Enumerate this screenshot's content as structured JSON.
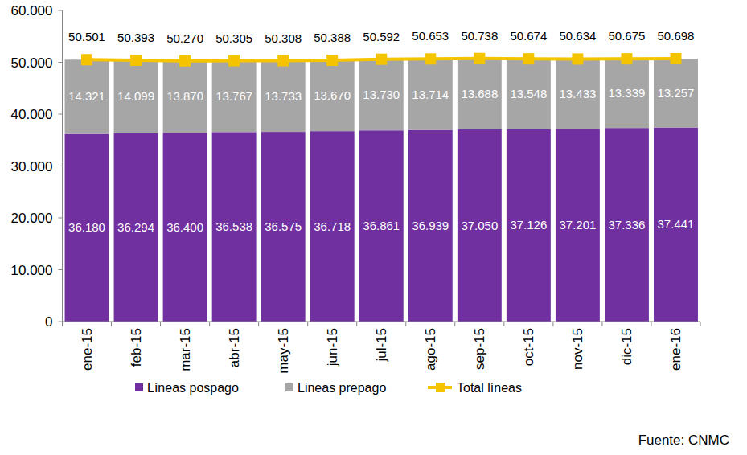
{
  "chart_data": {
    "type": "bar",
    "stacked": true,
    "data_labels": true,
    "legend": "bottom",
    "source": "Fuente: CNMC",
    "categories": [
      "ene-15",
      "feb-15",
      "mar-15",
      "abr-15",
      "may-15",
      "jun-15",
      "jul-15",
      "ago-15",
      "sep-15",
      "oct-15",
      "nov-15",
      "dic-15",
      "ene-16"
    ],
    "ylim": [
      0,
      60000
    ],
    "yticks": [
      0,
      {
        "value": 10000,
        "label": "10.000"
      },
      {
        "value": 20000,
        "label": "20.000"
      },
      {
        "value": 30000,
        "label": "30.000"
      },
      {
        "value": 40000,
        "label": "40.000"
      },
      {
        "value": 50000,
        "label": "50.000"
      },
      {
        "value": 60000,
        "label": "60.000"
      }
    ],
    "series": [
      {
        "name": "Líneas pospago",
        "type": "bar",
        "color": "#7030a0",
        "values": [
          36180,
          36294,
          36400,
          36538,
          36575,
          36718,
          36861,
          36939,
          37050,
          37126,
          37201,
          37336,
          37441
        ],
        "value_labels": [
          "36.180",
          "36.294",
          "36.400",
          "36.538",
          "36.575",
          "36.718",
          "36.861",
          "36.939",
          "37.050",
          "37.126",
          "37.201",
          "37.336",
          "37.441"
        ]
      },
      {
        "name": "Lineas prepago",
        "type": "bar",
        "color": "#a6a6a6",
        "values": [
          14321,
          14099,
          13870,
          13767,
          13733,
          13670,
          13730,
          13714,
          13688,
          13548,
          13433,
          13339,
          13257
        ],
        "value_labels": [
          "14.321",
          "14.099",
          "13.870",
          "13.767",
          "13.733",
          "13.670",
          "13.730",
          "13.714",
          "13.688",
          "13.548",
          "13.433",
          "13.339",
          "13.257"
        ]
      },
      {
        "name": "Total líneas",
        "type": "line",
        "color": "#f5c400",
        "marker": "square",
        "values": [
          50501,
          50393,
          50270,
          50305,
          50308,
          50388,
          50592,
          50653,
          50738,
          50674,
          50634,
          50675,
          50698
        ],
        "value_labels": [
          "50.501",
          "50.393",
          "50.270",
          "50.305",
          "50.308",
          "50.388",
          "50.592",
          "50.653",
          "50.738",
          "50.674",
          "50.634",
          "50.675",
          "50.698"
        ]
      }
    ]
  }
}
